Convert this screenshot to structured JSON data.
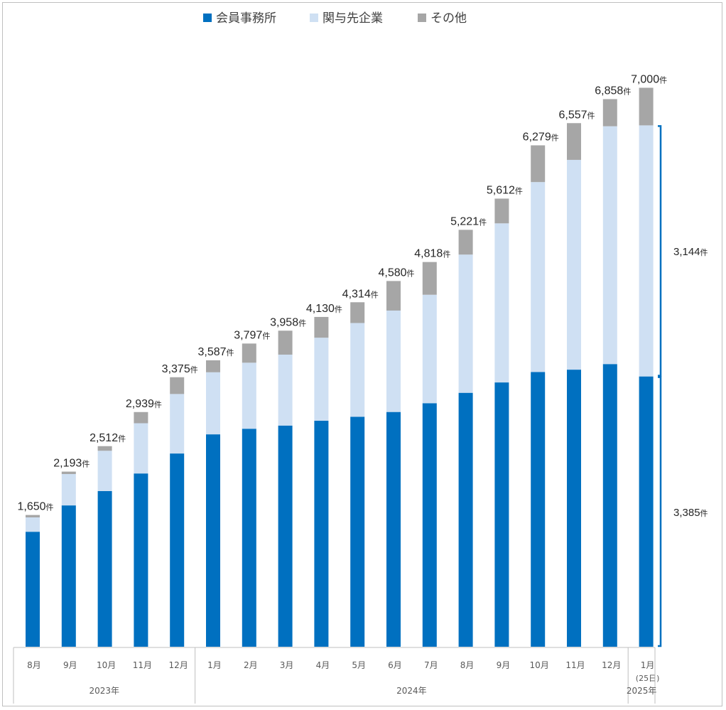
{
  "chart_data": {
    "type": "bar",
    "stacked": true,
    "legend": {
      "position": "top-center",
      "entries": [
        {
          "name": "会員事務所",
          "color": "#0070c0"
        },
        {
          "name": "関与先企業",
          "color": "#cfe0f3"
        },
        {
          "name": "その他",
          "color": "#a6a6a6"
        }
      ]
    },
    "unit": "件",
    "categories": [
      "8月",
      "9月",
      "10月",
      "11月",
      "12月",
      "1月",
      "2月",
      "3月",
      "4月",
      "5月",
      "6月",
      "7月",
      "8月",
      "9月",
      "10月",
      "11月",
      "12月",
      "1月"
    ],
    "category_notes": [
      "",
      "",
      "",
      "",
      "",
      "",
      "",
      "",
      "",
      "",
      "",
      "",
      "",
      "",
      "",
      "",
      "",
      "(25日)"
    ],
    "year_groups": [
      {
        "label": "2023年",
        "count": 5
      },
      {
        "label": "2024年",
        "count": 12
      },
      {
        "label": "2025年",
        "count": 1
      }
    ],
    "series": [
      {
        "name": "会員事務所",
        "color": "#0070c0",
        "values": [
          1440,
          1770,
          1950,
          2170,
          2420,
          2660,
          2730,
          2770,
          2830,
          2880,
          2940,
          3050,
          3180,
          3310,
          3440,
          3470,
          3540,
          3385
        ]
      },
      {
        "name": "関与先企業",
        "color": "#cfe0f3",
        "values": [
          180,
          393,
          504,
          629,
          745,
          777,
          827,
          888,
          1040,
          1174,
          1270,
          1358,
          1731,
          1992,
          2379,
          2627,
          2978,
          3144
        ]
      },
      {
        "name": "その他",
        "color": "#a6a6a6",
        "values": [
          30,
          30,
          58,
          140,
          210,
          150,
          240,
          300,
          260,
          260,
          370,
          410,
          310,
          310,
          460,
          460,
          340,
          471
        ]
      }
    ],
    "totals": [
      "1,650",
      "2,193",
      "2,512",
      "2,939",
      "3,375",
      "3,587",
      "3,797",
      "3,958",
      "4,130",
      "4,314",
      "4,580",
      "4,818",
      "5,221",
      "5,612",
      "6,279",
      "6,557",
      "6,858",
      "7,000"
    ],
    "totals_values": [
      1650,
      2193,
      2512,
      2939,
      3375,
      3587,
      3797,
      3958,
      4130,
      4314,
      4580,
      4818,
      5221,
      5612,
      6279,
      6557,
      6858,
      7000
    ],
    "annotations": [
      {
        "label": "3,144",
        "unit": "件",
        "from": 3385,
        "to": 6529
      },
      {
        "label": "3,385",
        "unit": "件",
        "from": 0,
        "to": 3385
      }
    ],
    "ylim": [
      0,
      7500
    ],
    "grid": false
  }
}
